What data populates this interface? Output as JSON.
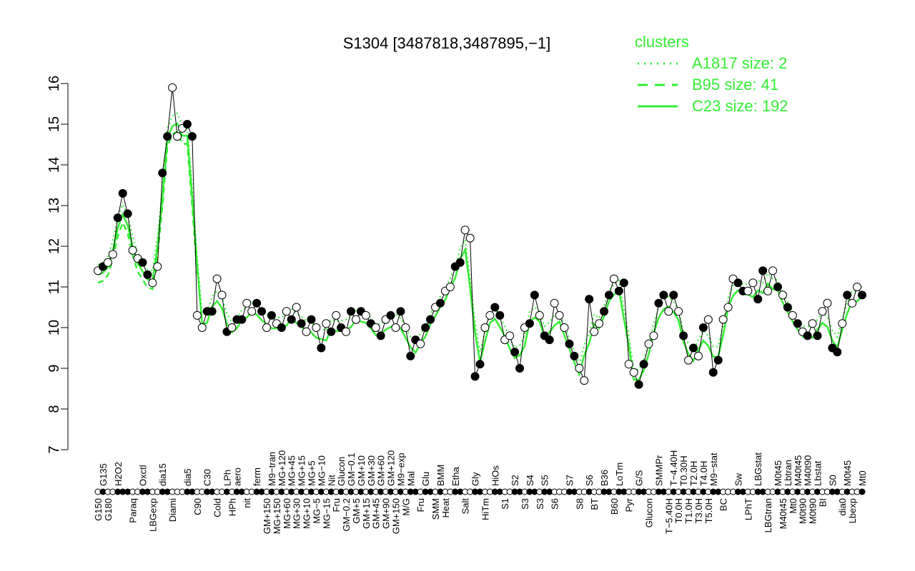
{
  "chart_data": {
    "type": "line",
    "title": "S1304 [3487818,3487895,−1]",
    "xlabel": "",
    "ylabel": "",
    "ylim": [
      7,
      16
    ],
    "yticks": [
      "7",
      "8",
      "9",
      "10",
      "11",
      "12",
      "13",
      "14",
      "15",
      "16"
    ],
    "legend": {
      "title": "clusters",
      "placement": "top-right",
      "color": "#33ee33",
      "entries": [
        {
          "label": "A1817 size: 2",
          "style": "dotted"
        },
        {
          "label": "B95 size: 41",
          "style": "dashed"
        },
        {
          "label": "C23 size: 192",
          "style": "solid"
        }
      ]
    },
    "points": [
      [
        "G150",
        11.4
      ],
      [
        "G135",
        11.5
      ],
      [
        "G180",
        11.6
      ],
      [
        "G180",
        11.8
      ],
      [
        "H2O2",
        12.7
      ],
      [
        "H2O2",
        13.3
      ],
      [
        "H2O2",
        12.8
      ],
      [
        "Paraq",
        11.9
      ],
      [
        "Paraq",
        11.7
      ],
      [
        "Oxctl",
        11.6
      ],
      [
        "Oxctl",
        11.3
      ],
      [
        "LBGexp",
        11.1
      ],
      [
        "LBGexp",
        11.5
      ],
      [
        "dia15",
        13.8
      ],
      [
        "dia15",
        14.7
      ],
      [
        "Diami",
        15.9
      ],
      [
        "Diami",
        14.7
      ],
      [
        "Diami",
        14.9
      ],
      [
        "dia5",
        15.0
      ],
      [
        "dia5",
        14.7
      ],
      [
        "C90",
        10.3
      ],
      [
        "C90",
        10.0
      ],
      [
        "C30",
        10.4
      ],
      [
        "C30",
        10.4
      ],
      [
        "Cold",
        11.2
      ],
      [
        "Cold",
        10.8
      ],
      [
        "LPh",
        9.9
      ],
      [
        "HPh",
        10.0
      ],
      [
        "aero",
        10.2
      ],
      [
        "aero",
        10.2
      ],
      [
        "nit",
        10.6
      ],
      [
        "nit",
        10.4
      ],
      [
        "ferm",
        10.6
      ],
      [
        "ferm",
        10.4
      ],
      [
        "GM+150",
        10.0
      ],
      [
        "M9−tran",
        10.3
      ],
      [
        "MG+150",
        10.1
      ],
      [
        "MG+120",
        10.0
      ],
      [
        "MG+60",
        10.4
      ],
      [
        "MG+45",
        10.2
      ],
      [
        "MG+30",
        10.5
      ],
      [
        "MG+15",
        10.1
      ],
      [
        "MG+10",
        9.9
      ],
      [
        "MG+5",
        10.2
      ],
      [
        "MG−5",
        10.0
      ],
      [
        "MG−10",
        9.5
      ],
      [
        "MG−15",
        10.1
      ],
      [
        "Nit",
        9.9
      ],
      [
        "Fru",
        10.3
      ],
      [
        "Glucon",
        10.0
      ],
      [
        "GM−0.2",
        9.9
      ],
      [
        "GM−0.1",
        10.4
      ],
      [
        "GM+5",
        10.2
      ],
      [
        "GM+10",
        10.4
      ],
      [
        "GM+15",
        10.3
      ],
      [
        "GM+30",
        10.1
      ],
      [
        "GM+45",
        10.0
      ],
      [
        "GM+60",
        9.8
      ],
      [
        "GM+90",
        10.2
      ],
      [
        "GM+120",
        10.3
      ],
      [
        "GM+150",
        10.0
      ],
      [
        "M9−exp",
        10.4
      ],
      [
        "M/G",
        10.0
      ],
      [
        "Mal",
        9.3
      ],
      [
        "Mal",
        9.7
      ],
      [
        "Fru",
        9.6
      ],
      [
        "Glu",
        10.0
      ],
      [
        "Glu",
        10.2
      ],
      [
        "SMM",
        10.5
      ],
      [
        "BMM",
        10.6
      ],
      [
        "Heat",
        10.9
      ],
      [
        "Heat",
        11.0
      ],
      [
        "Etha",
        11.5
      ],
      [
        "Etha",
        11.6
      ],
      [
        "Salt",
        12.4
      ],
      [
        "Salt",
        12.2
      ],
      [
        "Gly",
        8.8
      ],
      [
        "Gly",
        9.1
      ],
      [
        "HiTm",
        10.0
      ],
      [
        "HiTm",
        10.3
      ],
      [
        "HiOs",
        10.5
      ],
      [
        "HiOs",
        10.3
      ],
      [
        "S1",
        9.7
      ],
      [
        "S1",
        9.8
      ],
      [
        "S2",
        9.4
      ],
      [
        "S2",
        9.0
      ],
      [
        "S3",
        10.0
      ],
      [
        "S4",
        10.1
      ],
      [
        "S4",
        10.8
      ],
      [
        "S3",
        10.3
      ],
      [
        "S5",
        9.8
      ],
      [
        "S5",
        9.7
      ],
      [
        "S6",
        10.6
      ],
      [
        "S6",
        10.3
      ],
      [
        "S6",
        10.0
      ],
      [
        "S7",
        9.6
      ],
      [
        "S7",
        9.3
      ],
      [
        "S8",
        9.0
      ],
      [
        "S8",
        8.7
      ],
      [
        "S6",
        10.7
      ],
      [
        "BT",
        9.9
      ],
      [
        "BT",
        10.1
      ],
      [
        "B36",
        10.4
      ],
      [
        "B36",
        10.8
      ],
      [
        "B60",
        11.2
      ],
      [
        "LoTm",
        10.9
      ],
      [
        "LoTm",
        11.1
      ],
      [
        "Pyr",
        9.1
      ],
      [
        "Pyr",
        8.9
      ],
      [
        "G/S",
        8.6
      ],
      [
        "G/S",
        9.1
      ],
      [
        "Glucon",
        9.6
      ],
      [
        "Glucon",
        9.8
      ],
      [
        "SMMPr",
        10.6
      ],
      [
        "SMMPr",
        10.8
      ],
      [
        "T−5.40H",
        10.4
      ],
      [
        "T−4.40H",
        10.8
      ],
      [
        "T0.0H",
        10.4
      ],
      [
        "T0.30H",
        9.8
      ],
      [
        "T1.0H",
        9.2
      ],
      [
        "T2.0H",
        9.5
      ],
      [
        "T3.0H",
        9.3
      ],
      [
        "T4.0H",
        10.0
      ],
      [
        "T5.0H",
        10.2
      ],
      [
        "M9−stat",
        8.9
      ],
      [
        "M9−stat",
        9.2
      ],
      [
        "BC",
        10.2
      ],
      [
        "BC",
        10.5
      ],
      [
        "BC",
        11.2
      ],
      [
        "Sw",
        11.1
      ],
      [
        "Sw",
        10.9
      ],
      [
        "LPhT",
        10.9
      ],
      [
        "LPhT",
        11.1
      ],
      [
        "LBGstat",
        10.7
      ],
      [
        "LBGstat",
        11.4
      ],
      [
        "LBGtran",
        10.9
      ],
      [
        "LBGtran",
        11.4
      ],
      [
        "M0t45",
        11.0
      ],
      [
        "M40t45",
        10.8
      ],
      [
        "Lbtran",
        10.5
      ],
      [
        "Mt0",
        10.3
      ],
      [
        "M40t45",
        10.1
      ],
      [
        "M0t90",
        9.9
      ],
      [
        "M40t90",
        9.8
      ],
      [
        "M0t90",
        10.1
      ],
      [
        "Lbstat",
        9.8
      ],
      [
        "BI",
        10.4
      ],
      [
        "BI",
        10.6
      ],
      [
        "S0",
        9.5
      ],
      [
        "S0",
        9.4
      ],
      [
        "dia0",
        10.1
      ],
      [
        "M0t45",
        10.8
      ],
      [
        "Lbexp",
        10.6
      ],
      [
        "Lbexp",
        11.0
      ],
      [
        "Mt0",
        10.8
      ]
    ]
  }
}
